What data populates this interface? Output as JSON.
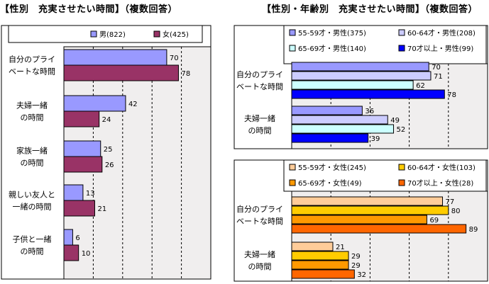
{
  "left_title": "【性別　充実させたい時間】（複数回答）",
  "right_title": "【性別・年齢別　充実させたい時間】（複数回答）",
  "chart_data": [
    {
      "type": "bar",
      "orientation": "horizontal",
      "categories": [
        "自分のプライ\nベートな時間",
        "夫婦一緒\nの時間",
        "家族一緒\nの時間",
        "親しい友人と\n一緒の時間",
        "子供と一緒\nの時間"
      ],
      "series": [
        {
          "name": "男(822)",
          "values": [
            70,
            42,
            25,
            13,
            6
          ],
          "color": "#9999ff"
        },
        {
          "name": "女(425)",
          "values": [
            78,
            24,
            26,
            21,
            10
          ],
          "color": "#993366"
        }
      ],
      "xlim": [
        0,
        100
      ],
      "grid": true,
      "legend": "top"
    },
    {
      "type": "bar",
      "orientation": "horizontal",
      "categories": [
        "自分のプライ\nベートな時間",
        "夫婦一緒\nの時間"
      ],
      "series": [
        {
          "name": "55-59才・男性(375)",
          "values": [
            70,
            36
          ],
          "color": "#9999ff"
        },
        {
          "name": "60-64才・男性(208)",
          "values": [
            71,
            49
          ],
          "color": "#ccccff"
        },
        {
          "name": "65-69才・男性(140)",
          "values": [
            62,
            52
          ],
          "color": "#ccffff"
        },
        {
          "name": "70才以上・男性(99)",
          "values": [
            78,
            39
          ],
          "color": "#0000ff"
        }
      ],
      "xlim": [
        0,
        100
      ],
      "grid": true,
      "legend": "top"
    },
    {
      "type": "bar",
      "orientation": "horizontal",
      "categories": [
        "自分のプライ\nベートな時間",
        "夫婦一緒\nの時間"
      ],
      "series": [
        {
          "name": "55-59才・女性(245)",
          "values": [
            77,
            21
          ],
          "color": "#ffcc99"
        },
        {
          "name": "60-64才・女性(103)",
          "values": [
            80,
            29
          ],
          "color": "#ffcc00"
        },
        {
          "name": "65-69才・女性(49)",
          "values": [
            69,
            29
          ],
          "color": "#ff9900"
        },
        {
          "name": "70才以上・女性(28)",
          "values": [
            89,
            32
          ],
          "color": "#ff6600"
        }
      ],
      "xlim": [
        0,
        100
      ],
      "grid": true,
      "legend": "top"
    }
  ]
}
